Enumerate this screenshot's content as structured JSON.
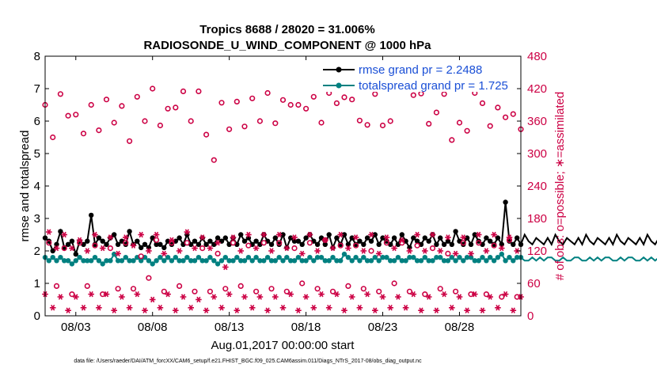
{
  "chart_data": {
    "type": "line",
    "title": "Tropics 8688 / 28020 = 31.006%",
    "subtitle": "RADIOSONDE_U_WIND_COMPONENT @ 1000 hPa",
    "xlabel": "Aug.01,2017 00:00:00 start",
    "ylabel_left": "rmse and totalspread",
    "ylabel_right": "# of obs: o=possible; ∗=assimilated",
    "xlim": [
      0,
      31
    ],
    "ylim_left": [
      0,
      8
    ],
    "ylim_right": [
      0,
      480
    ],
    "x_ticks": [
      2,
      7,
      12,
      17,
      22,
      27
    ],
    "x_tick_labels": [
      "08/03",
      "08/08",
      "08/13",
      "08/18",
      "08/23",
      "08/28"
    ],
    "y_ticks_left": [
      "0",
      "1",
      "2",
      "3",
      "4",
      "5",
      "6",
      "7",
      "8"
    ],
    "y_ticks_right": [
      "0",
      "60",
      "120",
      "180",
      "240",
      "300",
      "360",
      "420",
      "480"
    ],
    "legend": [
      {
        "label": "rmse grand pr = 2.2488",
        "color": "#000000"
      },
      {
        "label": "totalspread grand pr = 1.725",
        "color": "#008080"
      }
    ],
    "series": [
      {
        "name": "rmse",
        "axis": "left",
        "color": "#000000",
        "marker": "filled-circle",
        "dx": 0.25,
        "values": [
          2.4,
          2.3,
          2.0,
          2.2,
          2.6,
          2.1,
          2.2,
          2.3,
          1.9,
          2.3,
          2.2,
          2.3,
          3.1,
          2.2,
          2.4,
          2.3,
          2.2,
          2.4,
          2.5,
          2.2,
          2.3,
          2.2,
          2.6,
          2.2,
          2.3,
          2.1,
          2.2,
          2.1,
          2.4,
          2.2,
          2.2,
          2.1,
          2.3,
          2.2,
          2.3,
          2.4,
          2.2,
          2.5,
          2.2,
          2.3,
          2.2,
          2.4,
          2.2,
          2.3,
          2.2,
          2.4,
          2.3,
          2.4,
          2.2,
          2.4,
          2.2,
          2.5,
          2.3,
          2.4,
          2.2,
          2.3,
          2.2,
          2.5,
          2.3,
          2.2,
          2.4,
          2.2,
          2.5,
          2.1,
          2.4,
          2.3,
          2.3,
          2.2,
          2.4,
          2.5,
          2.3,
          2.2,
          2.4,
          2.2,
          2.5,
          2.1,
          2.4,
          2.2,
          2.5,
          2.2,
          2.4,
          2.2,
          2.3,
          2.2,
          2.4,
          2.3,
          2.5,
          2.2,
          2.4,
          2.3,
          2.2,
          2.4,
          2.2,
          2.5,
          2.3,
          2.1,
          2.4,
          2.3,
          2.2,
          2.4,
          2.3,
          2.5,
          2.2,
          2.4,
          2.2,
          2.3,
          2.2,
          2.6,
          2.3,
          2.2,
          2.4,
          2.2,
          2.5,
          2.3,
          2.2,
          2.4,
          2.3,
          2.2,
          2.4,
          2.2,
          3.5,
          2.3,
          2.2,
          2.4,
          2.2,
          2.5,
          2.3,
          2.2,
          2.4,
          2.3,
          2.2,
          2.4,
          2.2,
          2.5,
          2.3,
          2.2,
          2.4,
          2.3,
          2.2,
          2.4,
          2.2,
          2.5,
          2.3,
          2.2,
          2.4,
          2.3,
          2.2,
          2.4,
          2.2,
          2.5,
          2.3,
          2.2,
          2.4,
          2.3,
          2.2,
          2.4,
          2.2,
          2.5,
          2.3,
          2.2,
          2.4,
          2.3,
          2.2,
          2.4,
          2.2,
          2.5,
          2.3,
          2.2,
          2.4,
          2.3,
          2.2,
          2.4,
          2.2,
          2.5,
          2.3,
          2.2,
          2.4,
          2.3,
          2.2,
          2.4,
          2.2,
          2.5,
          2.3,
          2.2,
          2.4,
          2.3,
          2.2,
          2.4,
          2.2,
          2.5,
          2.3,
          2.2,
          2.4,
          2.3,
          2.2,
          2.4,
          2.2,
          2.5,
          2.3,
          2.2,
          2.4,
          2.3,
          2.2,
          2.4,
          2.2,
          2.5,
          2.3,
          2.2,
          2.4,
          2.3,
          2.2,
          2.4,
          2.2,
          2.5,
          2.3,
          2.2,
          2.4,
          2.3,
          2.2,
          2.4,
          2.2,
          2.5,
          2.3,
          2.2,
          2.4,
          2.3,
          2.2,
          2.4,
          2.2,
          2.5,
          2.3,
          2.2,
          2.4,
          2.3,
          2.2,
          2.4,
          2.2,
          2.5,
          2.3,
          2.2,
          2.4,
          2.3,
          2.2,
          2.4,
          2.2,
          2.5,
          2.3,
          2.2,
          2.4,
          2.3,
          2.2,
          2.4,
          2.2,
          2.5,
          2.3,
          2.2,
          2.4,
          2.3,
          2.2,
          2.4,
          2.2,
          2.5,
          2.3,
          2.2,
          2.4,
          2.3,
          2.2,
          2.4,
          2.2,
          2.5,
          2.3,
          2.2,
          2.4,
          2.3,
          2.2,
          2.4,
          2.2,
          2.5,
          2.3,
          2.2,
          2.4,
          2.3,
          2.2,
          2.4,
          2.2,
          2.5,
          2.3,
          2.2,
          2.4,
          2.3,
          2.2,
          2.4,
          2.2,
          2.5,
          2.3,
          2.2,
          2.4,
          2.3,
          2.2,
          2.4,
          2.2,
          2.5,
          2.3,
          2.2,
          2.4,
          2.3,
          2.2,
          2.4,
          2.2,
          2.5,
          2.3,
          2.2,
          2.4,
          2.3,
          2.2,
          2.4,
          2.2,
          2.5,
          2.3,
          2.2,
          2.4,
          2.3,
          2.2,
          2.4,
          2.2,
          2.5,
          2.3,
          2.2,
          2.4,
          2.3,
          2.2,
          2.4,
          2.2,
          2.5,
          2.3,
          2.2,
          2.4,
          2.3,
          2.2,
          2.4,
          2.2,
          2.5,
          2.3,
          2.2,
          2.4,
          2.3,
          2.2,
          2.4,
          2.2,
          2.5,
          2.3,
          2.2,
          2.4,
          2.3,
          2.2,
          2.4,
          2.2,
          2.5,
          2.3,
          2.2,
          2.4,
          2.3,
          2.2,
          2.4,
          2.2,
          2.5,
          2.3,
          2.2,
          2.4,
          2.3,
          2.2,
          2.4,
          2.2,
          2.5,
          2.3,
          2.2,
          2.4,
          2.3,
          2.2,
          2.4,
          2.2,
          2.5,
          2.3,
          2.2,
          2.4,
          2.3,
          2.2,
          2.4,
          2.2,
          2.5,
          2.3,
          2.2,
          2.4,
          2.3,
          2.2,
          2.4,
          2.2,
          2.5,
          2.3,
          2.2,
          2.4,
          2.3,
          2.2,
          2.4,
          2.2,
          2.5,
          2.3,
          2.2,
          2.4,
          2.3,
          2.2,
          2.4,
          2.2,
          2.5,
          2.3,
          2.2,
          2.4,
          2.3,
          2.2,
          2.4,
          2.2,
          2.5,
          2.3,
          2.2,
          2.4,
          2.3,
          2.2,
          2.4,
          2.2,
          2.5,
          2.3,
          2.2,
          2.4,
          2.3,
          2.2,
          2.4,
          2.2,
          2.5,
          2.3,
          2.2,
          2.4,
          2.3,
          2.2,
          2.4,
          2.2,
          2.5,
          2.3,
          2.2,
          2.4,
          2.3,
          2.2,
          2.4,
          2.2,
          2.5
        ]
      },
      {
        "name": "totalspread",
        "axis": "left",
        "color": "#008080",
        "marker": "filled-circle",
        "dx": 0.25,
        "values": [
          1.8,
          1.7,
          1.8,
          1.7,
          1.8,
          1.7,
          1.7,
          1.6,
          1.7,
          1.8,
          1.7,
          1.7,
          1.7,
          1.8,
          1.7,
          1.6,
          1.7,
          1.7,
          1.9,
          1.7,
          1.7,
          1.8,
          1.7,
          1.7,
          1.8,
          1.7,
          1.8,
          1.7,
          1.6,
          1.7,
          1.8,
          1.7,
          1.8,
          1.7,
          1.8,
          1.7,
          1.7,
          1.8,
          1.7,
          1.7,
          1.8,
          1.7,
          1.7,
          1.8,
          1.7,
          1.6,
          1.7,
          1.8,
          1.7,
          1.7,
          1.8,
          1.7,
          1.7,
          1.8,
          1.7,
          1.8,
          1.7,
          1.7,
          1.8,
          1.7,
          1.7,
          1.8,
          1.7,
          1.8,
          1.7,
          1.7,
          1.8,
          1.7,
          1.7,
          1.8,
          1.7,
          1.8,
          1.8,
          1.7,
          1.7,
          1.8,
          1.7,
          1.7,
          1.9,
          1.8,
          1.7,
          1.8,
          1.7,
          1.8,
          1.7,
          1.7,
          1.8,
          1.7,
          1.8,
          1.8,
          1.7,
          1.7,
          1.8,
          1.7,
          1.7,
          1.8,
          1.8,
          1.7,
          1.7,
          1.8,
          1.7,
          1.7,
          1.8,
          1.8,
          1.7,
          1.7,
          1.8,
          1.7,
          1.8,
          1.7,
          1.8,
          1.8,
          1.7,
          1.7,
          1.8,
          1.7,
          1.8,
          1.7,
          1.8,
          1.9,
          1.7,
          1.8,
          1.7,
          1.8,
          1.8,
          1.7,
          1.7,
          1.8,
          1.7,
          1.8,
          1.7,
          1.8,
          1.8,
          1.7,
          1.7,
          1.8,
          1.7,
          1.7,
          1.8,
          1.8,
          1.7,
          1.7,
          1.8,
          1.7,
          1.8,
          1.7,
          1.8,
          1.8,
          1.7,
          1.7,
          1.8,
          1.7,
          1.8,
          1.8,
          1.7,
          1.7,
          1.8,
          1.7,
          1.8,
          1.7,
          1.8,
          1.8,
          1.7,
          1.7,
          1.8,
          1.7,
          1.8,
          1.7,
          1.8,
          1.8,
          1.7,
          1.7,
          1.8,
          1.7,
          1.8,
          1.7,
          1.8,
          1.8,
          1.7,
          1.7,
          1.8,
          1.7,
          1.8,
          1.7,
          1.8,
          1.8,
          1.7,
          1.7,
          1.8,
          1.7,
          1.8,
          1.7,
          1.8,
          1.8,
          1.7,
          1.7,
          1.8,
          1.7,
          1.8,
          1.7,
          1.8,
          1.8,
          1.7,
          1.7,
          1.8,
          1.7,
          1.8,
          1.7,
          1.8,
          1.8,
          1.7,
          1.7,
          1.8,
          1.7,
          1.8,
          1.7,
          1.8,
          1.8,
          1.7,
          1.7,
          1.8,
          1.7,
          1.8,
          1.7,
          1.8,
          1.8,
          1.7,
          1.7,
          1.8,
          1.7,
          1.8,
          1.7,
          1.8,
          1.8,
          1.7,
          1.7,
          1.8,
          1.7,
          1.8,
          1.7,
          1.8,
          1.8,
          1.7,
          1.7,
          1.8,
          1.7,
          1.8,
          1.7,
          1.8,
          1.8,
          1.7,
          1.7,
          1.8,
          1.7,
          1.8,
          1.7,
          1.8,
          1.8,
          1.7,
          1.7,
          1.8,
          1.7,
          1.8,
          1.7,
          1.8,
          1.8,
          1.7,
          1.7,
          1.8,
          1.7,
          1.8,
          1.7,
          1.8,
          1.8,
          1.7,
          1.7,
          1.8,
          1.7,
          1.8,
          1.7,
          1.8,
          1.8,
          1.7,
          1.7,
          1.8,
          1.7,
          1.8,
          1.7,
          1.8,
          1.8,
          1.7,
          1.7,
          1.8,
          1.7,
          1.8,
          1.7,
          1.8,
          1.8,
          1.7,
          1.7,
          1.8,
          1.7,
          1.8,
          1.7,
          1.8,
          1.8,
          1.7,
          1.7,
          1.8,
          1.7,
          1.8,
          1.7,
          1.8,
          1.8,
          1.7,
          1.7,
          1.8,
          1.7,
          1.8,
          1.7,
          1.8,
          1.8,
          1.7,
          1.7,
          1.8,
          1.7,
          1.8,
          1.7,
          1.8,
          1.8,
          1.7,
          1.7,
          1.8,
          1.7,
          1.8,
          1.7,
          1.8,
          1.8,
          1.7,
          1.7,
          1.8,
          1.7,
          1.8,
          1.7,
          1.8,
          1.8,
          1.7,
          1.7,
          1.8,
          1.7,
          1.8,
          1.7,
          1.8,
          1.8,
          1.7,
          1.7,
          1.8,
          1.7,
          1.8,
          1.7,
          1.8,
          1.8,
          1.7,
          1.7,
          1.8,
          1.7,
          1.8,
          1.7,
          1.8,
          1.8,
          1.7,
          1.7,
          1.8,
          1.7,
          1.8,
          1.7,
          1.8,
          1.8,
          1.7,
          1.7,
          1.8,
          1.7,
          1.8,
          1.7,
          1.8,
          1.8,
          1.7,
          1.7,
          1.8,
          1.7,
          1.8,
          1.7,
          1.8,
          1.8,
          1.7,
          1.7,
          1.8,
          1.7,
          1.8,
          1.7,
          1.8,
          1.8,
          1.7,
          1.7,
          1.8,
          1.7,
          1.8,
          1.7,
          1.8,
          1.8,
          1.7,
          1.7,
          1.8,
          1.7,
          1.8,
          1.7,
          1.8,
          1.8,
          1.7,
          1.7,
          1.8,
          1.7,
          1.8,
          1.7,
          1.8,
          1.8,
          1.7,
          1.7,
          1.8,
          1.7,
          1.8,
          1.7,
          1.8,
          1.8,
          1.7,
          1.7,
          1.8,
          1.7,
          1.8,
          1.7,
          1.8,
          1.8,
          1.7,
          1.7,
          1.8,
          1.7,
          1.8,
          1.7,
          1.8,
          1.8,
          1.7,
          1.7,
          1.8
        ]
      },
      {
        "name": "possible (00Z, 12Z)",
        "axis": "right",
        "color": "#cc0044",
        "marker": "open-circle",
        "dx": 0.5,
        "values": [
          390,
          330,
          410,
          370,
          372,
          337,
          390,
          343,
          400,
          357,
          388,
          323,
          405,
          360,
          420,
          352,
          383,
          385,
          415,
          360,
          415,
          335,
          288,
          394,
          345,
          396,
          350,
          402,
          360,
          412,
          356,
          399,
          390,
          390,
          383,
          405,
          357,
          412,
          393,
          404,
          400,
          361,
          353,
          410,
          352,
          360,
          425,
          422,
          408,
          411,
          355,
          376,
          410,
          325,
          357,
          342,
          412,
          393,
          351,
          385,
          367,
          373,
          345,
          427,
          365,
          390
        ]
      },
      {
        "name": "possible (06Z, 18Z)",
        "axis": "right",
        "color": "#cc0044",
        "marker": "open-circle",
        "dx": 0.5,
        "values": [
          135,
          55,
          125,
          40,
          135,
          55,
          130,
          40,
          125,
          50,
          135,
          50,
          110,
          70,
          140,
          45,
          135,
          55,
          135,
          45,
          125,
          45,
          115,
          50,
          135,
          55,
          130,
          45,
          135,
          50,
          135,
          45,
          125,
          60,
          135,
          50,
          140,
          45,
          130,
          55,
          130,
          50,
          120,
          45,
          135,
          60,
          135,
          45,
          130,
          40,
          125,
          50,
          115,
          45,
          135,
          40,
          135,
          40,
          130,
          35,
          140,
          35,
          130,
          55,
          130,
          50,
          180
        ]
      },
      {
        "name": "assimilated (00Z, 12Z)",
        "axis": "right",
        "color": "#cc0044",
        "marker": "asterisk",
        "dx": 0.5,
        "values": [
          40,
          15,
          35,
          10,
          35,
          15,
          40,
          15,
          40,
          10,
          35,
          15,
          40,
          10,
          30,
          15,
          40,
          10,
          35,
          15,
          30,
          10,
          35,
          15,
          40,
          10,
          35,
          15,
          35,
          10,
          35,
          15,
          40,
          10,
          35,
          15,
          40,
          15,
          40,
          10,
          35,
          15,
          40,
          10,
          35,
          15,
          35,
          15,
          40,
          10,
          35,
          10,
          40,
          15,
          35,
          10,
          40,
          10,
          35,
          15,
          40,
          10,
          35,
          15,
          40,
          10,
          35,
          0
        ]
      },
      {
        "name": "assimilated (06Z, 18Z)",
        "axis": "right",
        "color": "#cc0044",
        "marker": "asterisk",
        "dx": 0.5,
        "values": [
          155,
          125,
          150,
          125,
          140,
          120,
          150,
          125,
          145,
          115,
          145,
          130,
          150,
          120,
          150,
          115,
          140,
          120,
          155,
          125,
          145,
          125,
          135,
          90,
          145,
          120,
          150,
          125,
          150,
          120,
          150,
          125,
          145,
          115,
          150,
          120,
          140,
          125,
          150,
          125,
          145,
          120,
          150,
          115,
          145,
          125,
          140,
          120,
          150,
          120,
          150,
          120,
          145,
          115,
          145,
          115,
          150,
          120,
          150,
          125,
          145,
          120,
          150,
          125,
          150,
          110,
          145,
          115
        ]
      }
    ],
    "footer": "data file: /Users/raeder/DAI/ATM_forcXX/CAM6_setup/f.e21.FHIST_BGC.f09_025.CAM6assim.011/Diags_NTrS_2017-08/obs_diag_output.nc"
  }
}
